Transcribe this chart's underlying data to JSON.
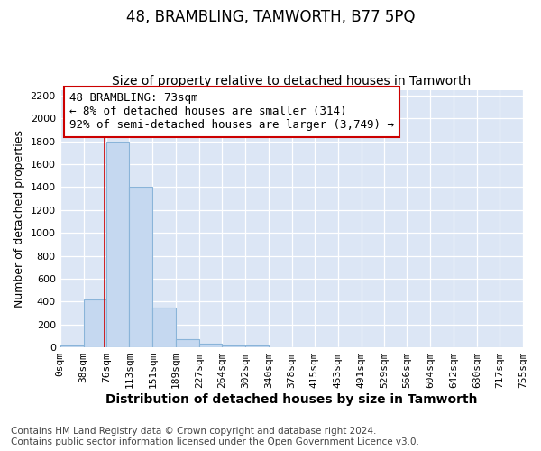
{
  "title": "48, BRAMBLING, TAMWORTH, B77 5PQ",
  "subtitle": "Size of property relative to detached houses in Tamworth",
  "xlabel": "Distribution of detached houses by size in Tamworth",
  "ylabel": "Number of detached properties",
  "bin_edges": [
    0,
    38,
    76,
    113,
    151,
    189,
    227,
    264,
    302,
    340,
    378,
    415,
    453,
    491,
    529,
    566,
    604,
    642,
    680,
    717,
    755
  ],
  "bar_heights": [
    15,
    420,
    1800,
    1400,
    350,
    75,
    30,
    20,
    15,
    0,
    0,
    0,
    0,
    0,
    0,
    0,
    0,
    0,
    0,
    0
  ],
  "bar_color": "#c5d8f0",
  "bar_edge_color": "#8ab4d9",
  "property_line_x": 73,
  "property_line_color": "#cc0000",
  "annotation_text": "48 BRAMBLING: 73sqm\n← 8% of detached houses are smaller (314)\n92% of semi-detached houses are larger (3,749) →",
  "annotation_box_color": "#ffffff",
  "annotation_border_color": "#cc0000",
  "ylim": [
    0,
    2250
  ],
  "yticks": [
    0,
    200,
    400,
    600,
    800,
    1000,
    1200,
    1400,
    1600,
    1800,
    2000,
    2200
  ],
  "tick_labels": [
    "0sqm",
    "38sqm",
    "76sqm",
    "113sqm",
    "151sqm",
    "189sqm",
    "227sqm",
    "264sqm",
    "302sqm",
    "340sqm",
    "378sqm",
    "415sqm",
    "453sqm",
    "491sqm",
    "529sqm",
    "566sqm",
    "604sqm",
    "642sqm",
    "680sqm",
    "717sqm",
    "755sqm"
  ],
  "figure_bg_color": "#ffffff",
  "plot_bg_color": "#dce6f5",
  "footer_text": "Contains HM Land Registry data © Crown copyright and database right 2024.\nContains public sector information licensed under the Open Government Licence v3.0.",
  "title_fontsize": 12,
  "subtitle_fontsize": 10,
  "xlabel_fontsize": 10,
  "ylabel_fontsize": 9,
  "tick_fontsize": 8,
  "footer_fontsize": 7.5,
  "annotation_fontsize": 9
}
